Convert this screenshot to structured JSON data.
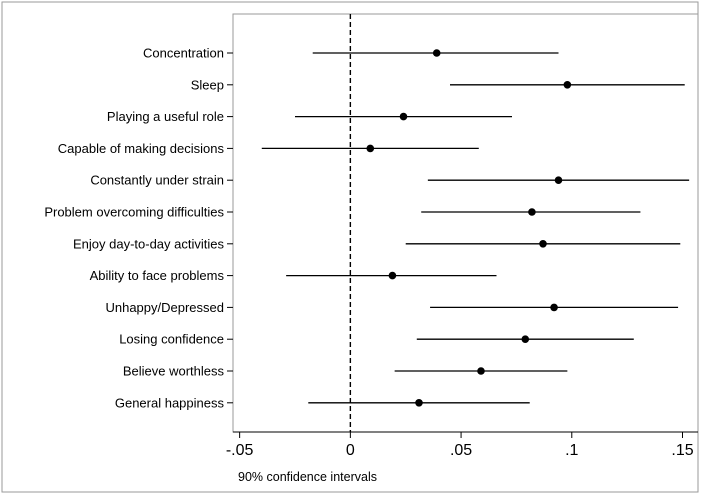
{
  "chart_data": {
    "type": "scatter",
    "subtype": "coefficient-plot-with-confidence-intervals",
    "categories": [
      "Concentration",
      "Sleep",
      "Playing a useful role",
      "Capable of making decisions",
      "Constantly under strain",
      "Problem overcoming difficulties",
      "Enjoy day-to-day activities",
      "Ability to face problems",
      "Unhappy/Depressed",
      "Losing confidence",
      "Believe worthless",
      "General happiness"
    ],
    "estimates": [
      0.039,
      0.098,
      0.024,
      0.009,
      0.094,
      0.082,
      0.087,
      0.019,
      0.092,
      0.079,
      0.059,
      0.031
    ],
    "ci_lower": [
      -0.017,
      0.045,
      -0.025,
      -0.04,
      0.035,
      0.032,
      0.025,
      -0.029,
      0.036,
      0.03,
      0.02,
      -0.019
    ],
    "ci_upper": [
      0.094,
      0.151,
      0.073,
      0.058,
      0.153,
      0.131,
      0.149,
      0.066,
      0.148,
      0.128,
      0.098,
      0.081
    ],
    "x_ticks": [
      -0.05,
      0,
      0.05,
      0.1,
      0.15
    ],
    "x_tick_labels": [
      "-.05",
      "0",
      ".05",
      ".1",
      ".15"
    ],
    "xlim": [
      -0.053,
      0.157
    ],
    "reference_line": {
      "x": 0,
      "style": "dashed"
    },
    "xlabel": "",
    "ylabel": "",
    "title": "",
    "note": "90% confidence intervals",
    "grid": false,
    "colors": {
      "marker": "#000000",
      "line": "#000000",
      "frame": "#9a9a9a",
      "axis": "#000000",
      "background": "#ffffff"
    }
  }
}
